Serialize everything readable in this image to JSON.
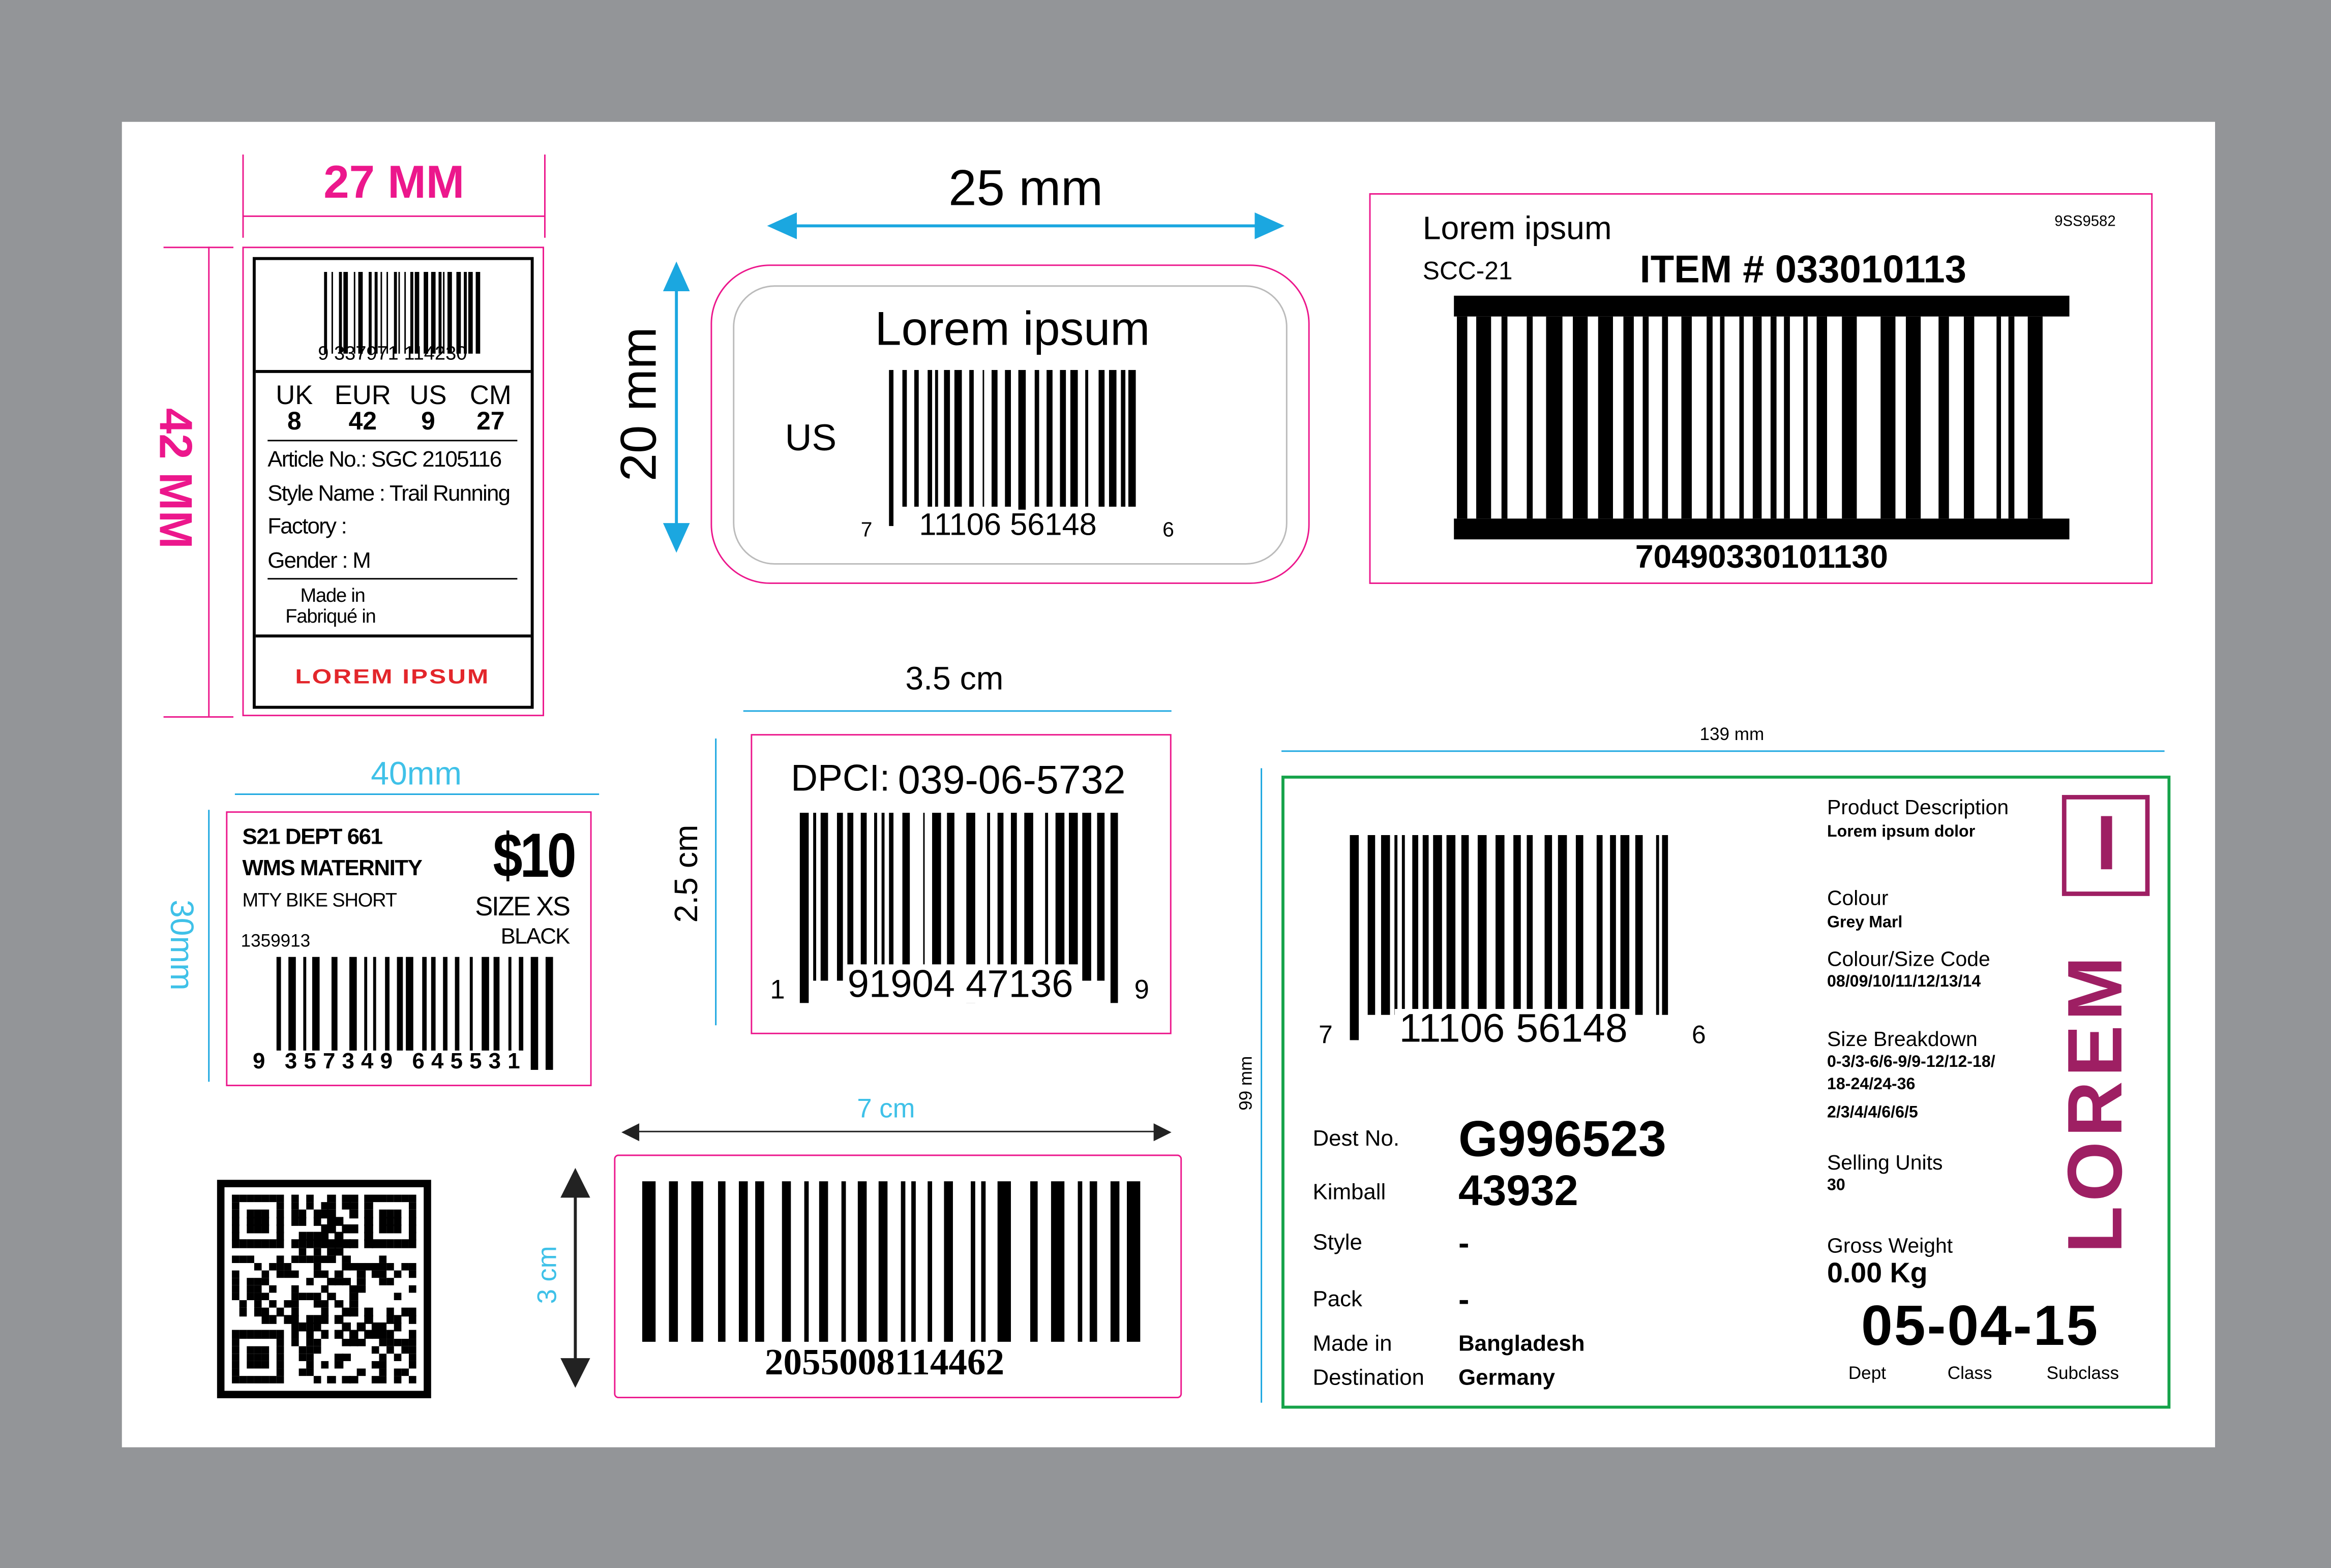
{
  "colors": {
    "background": "#939598",
    "sheet": "#ffffff",
    "pink": "#ec178c",
    "cyan": "#3fc1e8",
    "green": "#16a34a",
    "magenta": "#9e1f63",
    "red": "#e3262b"
  },
  "shoe_label": {
    "width_dim": "27 MM",
    "height_dim": "42 MM",
    "barcode_number": "9 337971 114230",
    "sizes": [
      {
        "unit": "UK",
        "value": "8"
      },
      {
        "unit": "EUR",
        "value": "42"
      },
      {
        "unit": "US",
        "value": "9"
      },
      {
        "unit": "CM",
        "value": "27"
      }
    ],
    "article": "Article No.: SGC 2105116",
    "style": "Style Name : Trail Running",
    "factory": "Factory :",
    "gender": "Gender : M",
    "made_in": "Made in",
    "fabrique_in": "Fabriqué in",
    "brand": "LOREM IPSUM"
  },
  "us_label": {
    "width_dim": "25 mm",
    "height_dim": "20 mm",
    "title": "Lorem ipsum",
    "country": "US",
    "digit_left": "7",
    "digits": "11106 56148",
    "digit_right": "6"
  },
  "item_label": {
    "title": "Lorem ipsum",
    "code": "SCC-21",
    "item": "ITEM # 033010113",
    "ref": "9SS9582",
    "number": "70490330101130"
  },
  "price_label": {
    "width_dim": "40mm",
    "height_dim": "30mm",
    "line1": "S21  DEPT 661",
    "line2": "WMS MATERNITY",
    "line3": "MTY BIKE SHORT",
    "sku": "1359913",
    "price": "$10",
    "size": "SIZE XS",
    "color": "BLACK",
    "barcode_digits": "9 357349 645531"
  },
  "dpci_label": {
    "width_dim": "3.5 cm",
    "height_dim": "2.5 cm",
    "dpci_label": "DPCI:",
    "dpci": "039-06-5732",
    "digit_left": "1",
    "digits": "91904 47136",
    "digit_right": "9"
  },
  "code_label": {
    "width_dim": "7 cm",
    "height_dim": "3 cm",
    "number": "2055008114462"
  },
  "carton_label": {
    "width_dim": "139 mm",
    "height_dim": "99 mm",
    "digit_left": "7",
    "digits": "11106 56148",
    "digit_right": "6",
    "fields": [
      {
        "label": "Dest No.",
        "value": "G996523"
      },
      {
        "label": "Kimball",
        "value": "43932"
      },
      {
        "label": "Style",
        "value": "-"
      },
      {
        "label": "Pack",
        "value": "-"
      },
      {
        "label": "Made in",
        "value": "Bangladesh"
      },
      {
        "label": "Destination",
        "value": "Germany"
      }
    ],
    "product_description_label": "Product Description",
    "product_description": "Lorem ipsum dolor",
    "colour_label": "Colour",
    "colour": "Grey Marl",
    "code_label": "Colour/Size Code",
    "code": "08/09/10/11/12/13/14",
    "size_label": "Size Breakdown",
    "size_1": "0-3/3-6/6-9/9-12/12-18/",
    "size_2": "18-24/24-36",
    "size_3": "2/3/4/4/6/6/5",
    "units_label": "Selling Units",
    "units": "30",
    "weight_label": "Gross Weight",
    "weight": "0.00 Kg",
    "code_number": "05-04-15",
    "dept": "Dept",
    "class": "Class",
    "subclass": "Subclass",
    "brand": "LOREM",
    "brand_box": "I"
  }
}
